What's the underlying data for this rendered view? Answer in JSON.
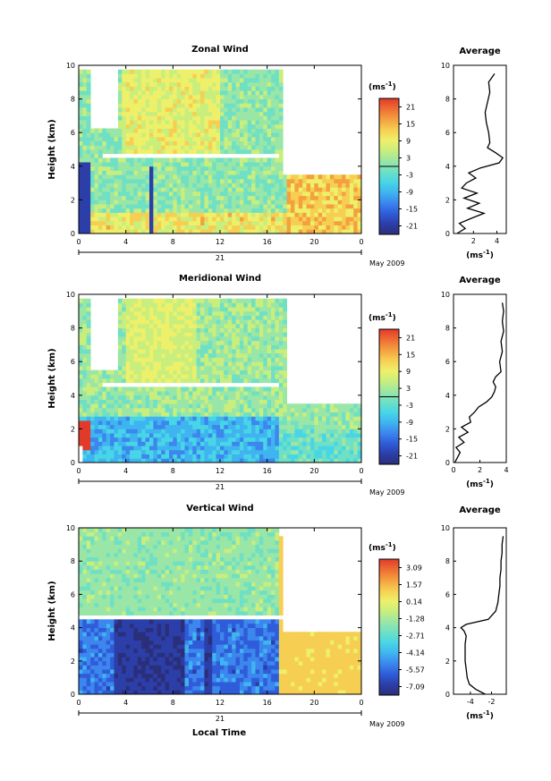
{
  "figure": {
    "x_axis_label": "Local Time",
    "date_label": "May 2009",
    "day_label": "21"
  },
  "colormap": [
    "#2b2f7a",
    "#2c3ea8",
    "#2f5cd9",
    "#3c86ee",
    "#3fb4f0",
    "#48d6e6",
    "#6fe0c4",
    "#9ae6a6",
    "#c8ee7e",
    "#eef06a",
    "#f6cf52",
    "#f4a040",
    "#ee6d33",
    "#e23a2a"
  ],
  "chart_data": [
    {
      "id": "zonal",
      "type": "heatmap",
      "title": "Zonal Wind",
      "ylabel": "Height (km)",
      "x_ticks": [
        "0",
        "4",
        "8",
        "12",
        "16",
        "20",
        "0"
      ],
      "x_range_hours": [
        0,
        24
      ],
      "ylim": [
        0,
        10
      ],
      "y_ticks": [
        "0",
        "2",
        "4",
        "6",
        "8",
        "10"
      ],
      "colorbar": {
        "unit": "(ms",
        "unit_exp": "-1",
        "unit_close": ")",
        "ticks": [
          "21",
          "15",
          "9",
          "3",
          "-3",
          "-9",
          "-15",
          "-21"
        ],
        "range": [
          -24,
          24
        ]
      },
      "profile": {
        "title": "Average",
        "xlabel": "(ms",
        "xlabel_exp": "-1",
        "xlabel_close": ")",
        "x_ticks": [
          "2",
          "4"
        ],
        "xlim": [
          0.3,
          4.8
        ],
        "height_km": [
          0.0,
          0.3,
          0.6,
          0.9,
          1.2,
          1.5,
          1.8,
          2.1,
          2.4,
          2.7,
          3.0,
          3.3,
          3.6,
          3.9,
          4.2,
          4.5,
          4.8,
          5.1,
          5.4,
          6.0,
          6.6,
          7.2,
          7.8,
          8.4,
          9.0,
          9.5
        ],
        "value": [
          0.6,
          1.3,
          0.8,
          1.8,
          2.9,
          1.5,
          2.5,
          1.2,
          2.3,
          1.0,
          1.4,
          2.2,
          1.6,
          2.6,
          4.2,
          4.5,
          3.9,
          3.2,
          3.4,
          3.3,
          3.1,
          3.0,
          3.2,
          3.4,
          3.3,
          3.8
        ]
      }
    },
    {
      "id": "meridional",
      "type": "heatmap",
      "title": "Meridional Wind",
      "ylabel": "Height (km)",
      "x_ticks": [
        "0",
        "4",
        "8",
        "12",
        "16",
        "20",
        "0"
      ],
      "x_range_hours": [
        0,
        24
      ],
      "ylim": [
        0,
        10
      ],
      "y_ticks": [
        "0",
        "2",
        "4",
        "6",
        "8",
        "10"
      ],
      "colorbar": {
        "unit": "(ms",
        "unit_exp": "-1",
        "unit_close": ")",
        "ticks": [
          "21",
          "15",
          "9",
          "3",
          "-3",
          "-9",
          "-15",
          "-21"
        ],
        "range": [
          -24,
          24
        ]
      },
      "profile": {
        "title": "Average",
        "xlabel": "(ms",
        "xlabel_exp": "-1",
        "xlabel_close": ")",
        "x_ticks": [
          "0",
          "2",
          "4"
        ],
        "xlim": [
          0,
          4
        ],
        "height_km": [
          0.0,
          0.3,
          0.6,
          0.9,
          1.2,
          1.5,
          1.8,
          2.1,
          2.4,
          2.7,
          3.0,
          3.3,
          3.6,
          3.9,
          4.2,
          4.5,
          4.8,
          5.1,
          5.4,
          6.0,
          6.6,
          7.2,
          7.8,
          8.4,
          9.0,
          9.5
        ],
        "value": [
          0.1,
          0.3,
          0.5,
          0.2,
          0.8,
          0.4,
          1.1,
          0.6,
          1.3,
          1.2,
          1.6,
          1.9,
          2.5,
          2.9,
          3.1,
          3.2,
          3.0,
          3.2,
          3.6,
          3.5,
          3.7,
          3.6,
          3.8,
          3.7,
          3.8,
          3.7
        ]
      }
    },
    {
      "id": "vertical",
      "type": "heatmap",
      "title": "Vertical Wind",
      "ylabel": "Height (km)",
      "x_ticks": [
        "0",
        "4",
        "8",
        "12",
        "16",
        "20",
        "0"
      ],
      "x_range_hours": [
        0,
        24
      ],
      "ylim": [
        0,
        10
      ],
      "y_ticks": [
        "0",
        "2",
        "4",
        "6",
        "8",
        "10"
      ],
      "colorbar": {
        "unit": "(ms",
        "unit_exp": "-1",
        "unit_close": ")",
        "ticks": [
          "3.09",
          "1.57",
          "0.14",
          "-1.28",
          "-2.71",
          "-4.14",
          "-5.57",
          "-7.09"
        ],
        "range": [
          -8.5,
          4.5
        ]
      },
      "profile": {
        "title": "Average",
        "xlabel": "(ms",
        "xlabel_exp": "-1",
        "xlabel_close": ")",
        "x_ticks": [
          "-4",
          "-2"
        ],
        "xlim": [
          -5.6,
          -0.6
        ],
        "height_km": [
          0.0,
          0.3,
          0.6,
          1.0,
          1.5,
          2.0,
          2.5,
          3.0,
          3.5,
          3.8,
          4.0,
          4.2,
          4.5,
          5.0,
          5.5,
          6.0,
          6.5,
          7.0,
          7.5,
          8.0,
          8.5,
          9.0,
          9.5
        ],
        "value": [
          -2.6,
          -3.5,
          -4.1,
          -4.3,
          -4.4,
          -4.5,
          -4.5,
          -4.5,
          -4.4,
          -4.6,
          -4.9,
          -4.4,
          -2.3,
          -1.6,
          -1.4,
          -1.3,
          -1.2,
          -1.2,
          -1.1,
          -1.1,
          -1.0,
          -1.0,
          -0.9
        ]
      }
    }
  ]
}
